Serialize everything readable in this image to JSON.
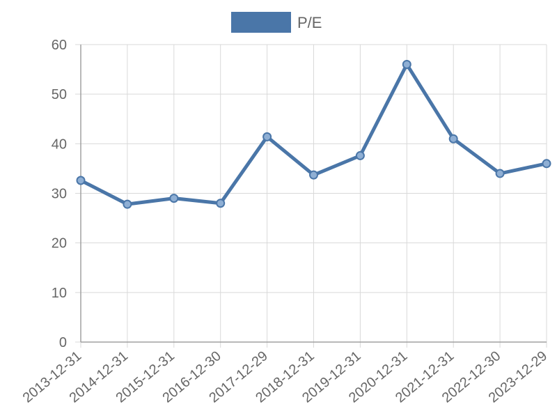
{
  "chart_data": {
    "type": "line",
    "x": [
      "2013-12-31",
      "2014-12-31",
      "2015-12-31",
      "2016-12-30",
      "2017-12-29",
      "2018-12-31",
      "2019-12-31",
      "2020-12-31",
      "2021-12-31",
      "2022-12-30",
      "2023-12-29"
    ],
    "series": [
      {
        "name": "P/E",
        "values": [
          32.6,
          27.8,
          29.0,
          28.0,
          41.4,
          33.7,
          37.6,
          56.0,
          41.0,
          34.0,
          36.0
        ]
      }
    ],
    "ylim": [
      0,
      60
    ],
    "yticks": [
      "0",
      "10",
      "20",
      "30",
      "40",
      "50",
      "60"
    ],
    "grid": true,
    "legend_position": "top-center",
    "colors": {
      "line": "#4a76a8",
      "point_fill": "#8fafd4"
    }
  }
}
